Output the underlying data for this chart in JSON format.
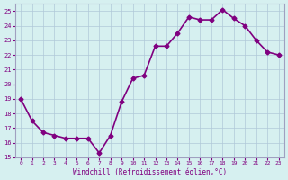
{
  "x": [
    0,
    1,
    2,
    3,
    4,
    5,
    6,
    7,
    8,
    9,
    10,
    11,
    12,
    13,
    14,
    15,
    16,
    17,
    18,
    19,
    20,
    21,
    22,
    23
  ],
  "y": [
    19,
    17.5,
    16.7,
    16.5,
    16.3,
    16.3,
    16.3,
    15.3,
    16.5,
    18.8,
    20.4,
    20.6,
    22.6,
    22.6,
    23.5,
    24.6,
    24.4,
    24.4,
    25.1,
    24.5,
    24.0,
    23.0,
    22.2,
    22.0
  ],
  "xlabel": "Windchill (Refroidissement éolien,°C)",
  "ylim": [
    15,
    25.5
  ],
  "yticks": [
    15,
    16,
    17,
    18,
    19,
    20,
    21,
    22,
    23,
    24,
    25
  ],
  "xlim": [
    -0.5,
    23.5
  ],
  "xticks": [
    0,
    1,
    2,
    3,
    4,
    5,
    6,
    7,
    8,
    9,
    10,
    11,
    12,
    13,
    14,
    15,
    16,
    17,
    18,
    19,
    20,
    21,
    22,
    23
  ],
  "line_color": "#800080",
  "marker": "D",
  "marker_size": 2.5,
  "bg_color": "#d6f0f0",
  "grid_color": "#b0c8d8",
  "line_width": 1.2
}
